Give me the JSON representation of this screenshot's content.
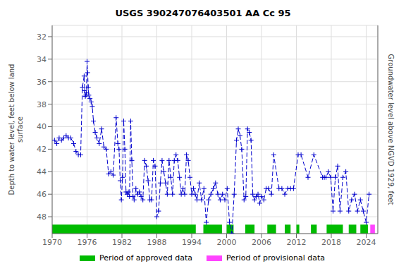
{
  "chart_data": {
    "type": "line",
    "title": "USGS 390247076403501 AA Cc  95",
    "ylabel": "Depth to water level, feet below land\nsurface",
    "y2label": "Groundwater level above NGVD 1929, feet",
    "x": [
      1970.4,
      1970.8,
      1971.2,
      1971.6,
      1972.0,
      1972.4,
      1972.8,
      1973.2,
      1973.7,
      1974.1,
      1974.5,
      1974.9,
      1975.2,
      1975.5,
      1975.6,
      1975.7,
      1975.8,
      1975.9,
      1976.0,
      1976.1,
      1976.2,
      1976.3,
      1976.5,
      1976.7,
      1976.9,
      1977.1,
      1977.4,
      1977.7,
      1978.1,
      1978.5,
      1978.9,
      1979.3,
      1979.7,
      1980.1,
      1980.5,
      1981.0,
      1981.3,
      1981.5,
      1981.7,
      1981.9,
      1982.1,
      1982.3,
      1982.5,
      1982.7,
      1982.9,
      1983.1,
      1983.3,
      1983.5,
      1983.7,
      1983.9,
      1984.1,
      1984.4,
      1984.7,
      1985.0,
      1985.3,
      1985.6,
      1985.9,
      1986.2,
      1986.5,
      1986.8,
      1987.1,
      1987.4,
      1987.7,
      1988.0,
      1988.3,
      1988.6,
      1988.9,
      1989.2,
      1989.5,
      1989.8,
      1990.1,
      1990.4,
      1990.7,
      1991.0,
      1991.3,
      1991.6,
      1991.9,
      1992.2,
      1992.5,
      1992.8,
      1993.1,
      1993.4,
      1993.7,
      1994.0,
      1994.3,
      1994.6,
      1994.9,
      1995.3,
      1995.7,
      1996.1,
      1996.5,
      1996.9,
      1997.3,
      1997.7,
      1998.1,
      1998.5,
      1998.9,
      1999.3,
      1999.7,
      2000.1,
      2000.5,
      2000.9,
      2001.3,
      2001.7,
      2002.0,
      2002.3,
      2002.6,
      2003.0,
      2003.3,
      2003.6,
      2003.9,
      2004.2,
      2004.5,
      2004.8,
      2005.1,
      2005.4,
      2005.7,
      2006.0,
      2006.4,
      2006.8,
      2007.2,
      2007.7,
      2008.1,
      2009.0,
      2009.5,
      2010.0,
      2010.5,
      2011.0,
      2011.5,
      2012.3,
      2012.8,
      2014.0,
      2015.0,
      2016.5,
      2016.8,
      2017.1,
      2017.5,
      2017.9,
      2018.3,
      2018.7,
      2019.1,
      2019.5,
      2020.0,
      2020.5,
      2021.0,
      2021.5,
      2022.0,
      2022.5,
      2023.0,
      2023.5,
      2024.0,
      2024.5
    ],
    "series": [
      {
        "color": "#0000cd",
        "marker": "plus",
        "line_style": "dashed",
        "values": [
          41.2,
          41.5,
          41.0,
          41.2,
          41.0,
          40.8,
          41.0,
          41.0,
          41.5,
          42.2,
          42.5,
          42.5,
          36.5,
          35.5,
          36.8,
          37.3,
          37.2,
          37.0,
          34.2,
          35.2,
          36.5,
          37.2,
          37.5,
          37.8,
          38.2,
          39.5,
          40.5,
          41.0,
          41.5,
          40.2,
          41.8,
          42.0,
          44.2,
          44.0,
          44.3,
          39.2,
          41.5,
          42.0,
          44.8,
          46.5,
          44.5,
          39.5,
          42.0,
          45.8,
          46.0,
          45.8,
          46.2,
          39.5,
          43.0,
          46.2,
          46.5,
          45.5,
          46.0,
          45.8,
          46.2,
          46.5,
          43.0,
          43.5,
          44.8,
          46.5,
          46.5,
          43.0,
          43.5,
          48.0,
          47.5,
          45.0,
          43.0,
          44.0,
          45.0,
          46.0,
          43.0,
          44.5,
          46.0,
          43.0,
          42.5,
          43.0,
          44.5,
          46.0,
          45.5,
          46.0,
          42.5,
          43.0,
          44.5,
          46.0,
          45.5,
          46.0,
          46.5,
          45.0,
          46.5,
          45.5,
          48.5,
          46.5,
          46.0,
          45.5,
          45.0,
          46.0,
          46.5,
          46.0,
          46.5,
          45.5,
          48.5,
          49.5,
          46.0,
          41.2,
          40.2,
          40.8,
          42.0,
          46.5,
          46.2,
          40.2,
          40.5,
          41.2,
          46.0,
          46.5,
          46.2,
          46.0,
          46.8,
          46.2,
          46.5,
          45.5,
          45.5,
          46.0,
          42.5,
          45.5,
          45.5,
          46.0,
          45.5,
          45.5,
          45.5,
          42.5,
          42.5,
          44.5,
          42.5,
          44.5,
          44.5,
          44.5,
          44.0,
          44.5,
          47.5,
          44.5,
          43.5,
          47.5,
          44.5,
          44.0,
          47.5,
          46.5,
          46.0,
          47.5,
          46.5,
          47.5,
          48.5,
          46.0
        ]
      }
    ],
    "xlim": [
      1970,
      2026
    ],
    "xticks": [
      1970,
      1976,
      1982,
      1988,
      1994,
      2000,
      2006,
      2012,
      2018,
      2024
    ],
    "ylim": [
      49.5,
      31.0
    ],
    "yticks": [
      32,
      34,
      36,
      38,
      40,
      42,
      44,
      46,
      48
    ],
    "grid": true,
    "legend": "bottom",
    "periods": [
      {
        "name": "Period of approved data",
        "color": "#00bb00",
        "segments": [
          [
            1970.0,
            1994.7
          ],
          [
            1996.0,
            1999.2
          ],
          [
            2000.0,
            2001.2
          ],
          [
            2003.2,
            2004.8
          ],
          [
            2007.0,
            2008.5
          ],
          [
            2010.0,
            2011.0
          ],
          [
            2012.0,
            2012.5
          ],
          [
            2014.5,
            2015.5
          ],
          [
            2017.2,
            2020.0
          ],
          [
            2021.0,
            2022.3
          ],
          [
            2023.0,
            2024.3
          ]
        ]
      },
      {
        "name": "Period of provisional data",
        "color": "#ff44ff",
        "segments": [
          [
            2024.7,
            2025.5
          ]
        ]
      }
    ]
  }
}
